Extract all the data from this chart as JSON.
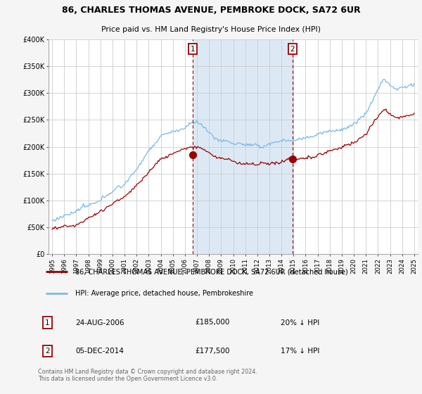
{
  "title": "86, CHARLES THOMAS AVENUE, PEMBROKE DOCK, SA72 6UR",
  "subtitle": "Price paid vs. HM Land Registry's House Price Index (HPI)",
  "legend_line1": "86, CHARLES THOMAS AVENUE, PEMBROKE DOCK, SA72 6UR (detached house)",
  "legend_line2": "HPI: Average price, detached house, Pembrokeshire",
  "footnote": "Contains HM Land Registry data © Crown copyright and database right 2024.\nThis data is licensed under the Open Government Licence v3.0.",
  "transaction1_label": "1",
  "transaction1_date": "24-AUG-2006",
  "transaction1_price": "£185,000",
  "transaction1_hpi": "20% ↓ HPI",
  "transaction2_label": "2",
  "transaction2_date": "05-DEC-2014",
  "transaction2_price": "£177,500",
  "transaction2_hpi": "17% ↓ HPI",
  "ylim": [
    0,
    400000
  ],
  "xlim_left": 1994.7,
  "xlim_right": 2025.3,
  "plot_bg_color": "#ffffff",
  "shade_color": "#dce9f5",
  "grid_color": "#cccccc",
  "hpi_color": "#7ab8e8",
  "price_color": "#990000",
  "marker1_x": 2006.65,
  "marker1_y": 185000,
  "marker2_x": 2014.92,
  "marker2_y": 177500,
  "vline1_x": 2006.65,
  "vline2_x": 2014.92
}
